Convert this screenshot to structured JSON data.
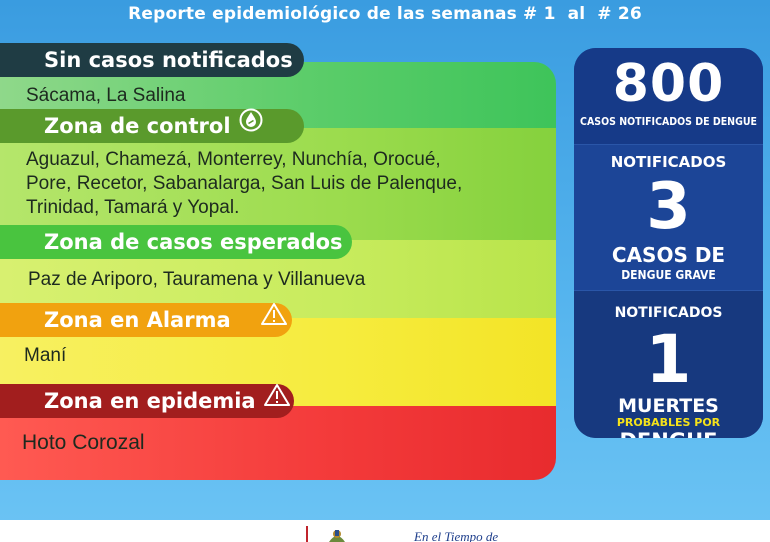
{
  "header": {
    "title_prefix": "Reporte epidemiológico de las semanas",
    "week_from": "# 1",
    "connector": "al",
    "week_to": "# 26"
  },
  "zones": [
    {
      "title": "Sin casos notificados",
      "text": "Sácama, La Salina",
      "color": "#1f3c44"
    },
    {
      "title": "Zona de control",
      "lines": [
        "Aguazul, Chamezá, Monterrey,  Nunchía, Orocué,",
        "Pore, Recetor, Sabanalarga, San Luis de Palenque,",
        "Trinidad, Tamará y Yopal."
      ],
      "color": "#5a9a2c",
      "icon": "drop-warning-icon"
    },
    {
      "title": "Zona de casos esperados",
      "text": "Paz de Ariporo, Tauramena y Villanueva",
      "color": "#49c43f"
    },
    {
      "title": "Zona en Alarma",
      "text": "Maní",
      "color": "#f1a20f",
      "icon": "warning-triangle-icon"
    },
    {
      "title": "Zona en epidemia",
      "text": "Hoto Corozal",
      "color": "#a21e1e",
      "icon": "warning-triangle-icon"
    }
  ],
  "stats": {
    "total": {
      "value": "800",
      "label": "CASOS NOTIFICADOS DE DENGUE"
    },
    "grave": {
      "top_label": "NOTIFICADOS",
      "value": "3",
      "label_line1": "CASOS DE",
      "label_line2": "DENGUE GRAVE"
    },
    "deaths": {
      "top_label": "NOTIFICADOS",
      "value": "1",
      "label_line1": "MUERTES",
      "label_yellow": "PROBABLES POR",
      "label_line3": "DENGUE"
    }
  },
  "footer": {
    "text": "En el Tiempo de"
  },
  "colors": {
    "background": "#3a9ce0",
    "stats_panel": "#1b3f8f",
    "accent_yellow": "#f5e21a"
  }
}
